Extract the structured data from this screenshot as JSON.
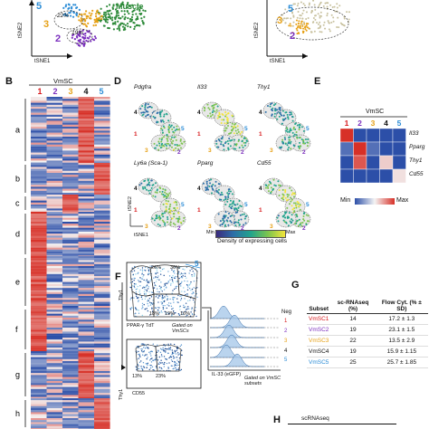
{
  "colors": {
    "vmsc1": "#d7191c",
    "vmsc2": "#7b2fbe",
    "vmsc3": "#e6a117",
    "vmsc4": "#111111",
    "vmsc5": "#2b8cd6",
    "muscle": "#2e8b3a",
    "heat_min": "#2c4fa8",
    "heat_max": "#d73027",
    "heat_mid": "#f4f4f4"
  },
  "panel_a": {
    "muscle_label": "Muscle",
    "pct_1": "22%",
    "pct_2": "19%",
    "cluster_5": "5",
    "cluster_3": "3",
    "cluster_2": "2",
    "xaxis": "tSNE1",
    "yaxis": "tSNE2"
  },
  "panel_a2": {
    "cluster_5": "5",
    "cluster_3": "3",
    "cluster_2": "2",
    "xaxis": "tSNE1",
    "yaxis": "tSNE2"
  },
  "panel_b": {
    "letter": "B",
    "title": "VmSC",
    "columns": [
      "1",
      "2",
      "3",
      "4",
      "5"
    ],
    "row_groups": [
      "a",
      "b",
      "c",
      "d",
      "e",
      "f",
      "g",
      "h"
    ]
  },
  "panel_d": {
    "letter": "D",
    "genes_row1": [
      "Pdgfra",
      "Il33",
      "Thy1"
    ],
    "genes_row2": [
      "Ly6a (Sca-1)",
      "Pparg",
      "Cd55"
    ],
    "xaxis": "tSNE1",
    "yaxis": "tSNE2",
    "legend_min": "Min",
    "legend_max": "Max",
    "legend_caption": "Density of expressing cells"
  },
  "panel_e": {
    "letter": "E",
    "title": "VmSC",
    "columns": [
      "1",
      "2",
      "3",
      "4",
      "5"
    ],
    "rows": [
      "Il33",
      "Pparg",
      "Thy1",
      "Cd55"
    ],
    "heat": [
      [
        1.0,
        0.0,
        0.0,
        0.0,
        0.0
      ],
      [
        0.1,
        1.0,
        0.1,
        0.0,
        0.0
      ],
      [
        0.0,
        0.9,
        0.0,
        0.6,
        0.0
      ],
      [
        0.0,
        0.0,
        0.0,
        0.0,
        0.55
      ]
    ],
    "legend_min": "Min",
    "legend_max": "Max"
  },
  "panel_f": {
    "letter": "F",
    "gate_pcts": [
      "26%",
      "36%",
      "18%",
      "19%",
      "16%"
    ],
    "gate_pct_5": "5",
    "yaxis_top": "Thy1",
    "xaxis_top": "PPAR-γ TdT",
    "gated_on_top": "Gated on VmSCs",
    "lower_pcts": [
      "13%",
      "23%"
    ],
    "yaxis_bottom": "Thy1",
    "xaxis_bottom": "CD55",
    "hist_labels": [
      "Neg",
      "1",
      "2",
      "3",
      "4",
      "5"
    ],
    "hist_xaxis": "IL-33 (eGFP)",
    "gated_on_hist": "Gated on VmSC subsets"
  },
  "panel_g": {
    "letter": "G",
    "headers": [
      "Subset",
      "sc-RNAseq (%)",
      "Flow Cyt. (% ± SD)"
    ],
    "rows": [
      {
        "subset": "VmSC1",
        "sc": "14",
        "flow": "17.2 ± 1.3"
      },
      {
        "subset": "VmSC2",
        "sc": "19",
        "flow": "23.1 ± 1.5"
      },
      {
        "subset": "VmSC3",
        "sc": "22",
        "flow": "13.5 ± 2.9"
      },
      {
        "subset": "VmSC4",
        "sc": "19",
        "flow": "15.9 ± 1.15"
      },
      {
        "subset": "VmSC5",
        "sc": "25",
        "flow": "25.7 ± 1.85"
      }
    ]
  },
  "panel_h": {
    "letter": "H",
    "title": "scRNAseq"
  }
}
